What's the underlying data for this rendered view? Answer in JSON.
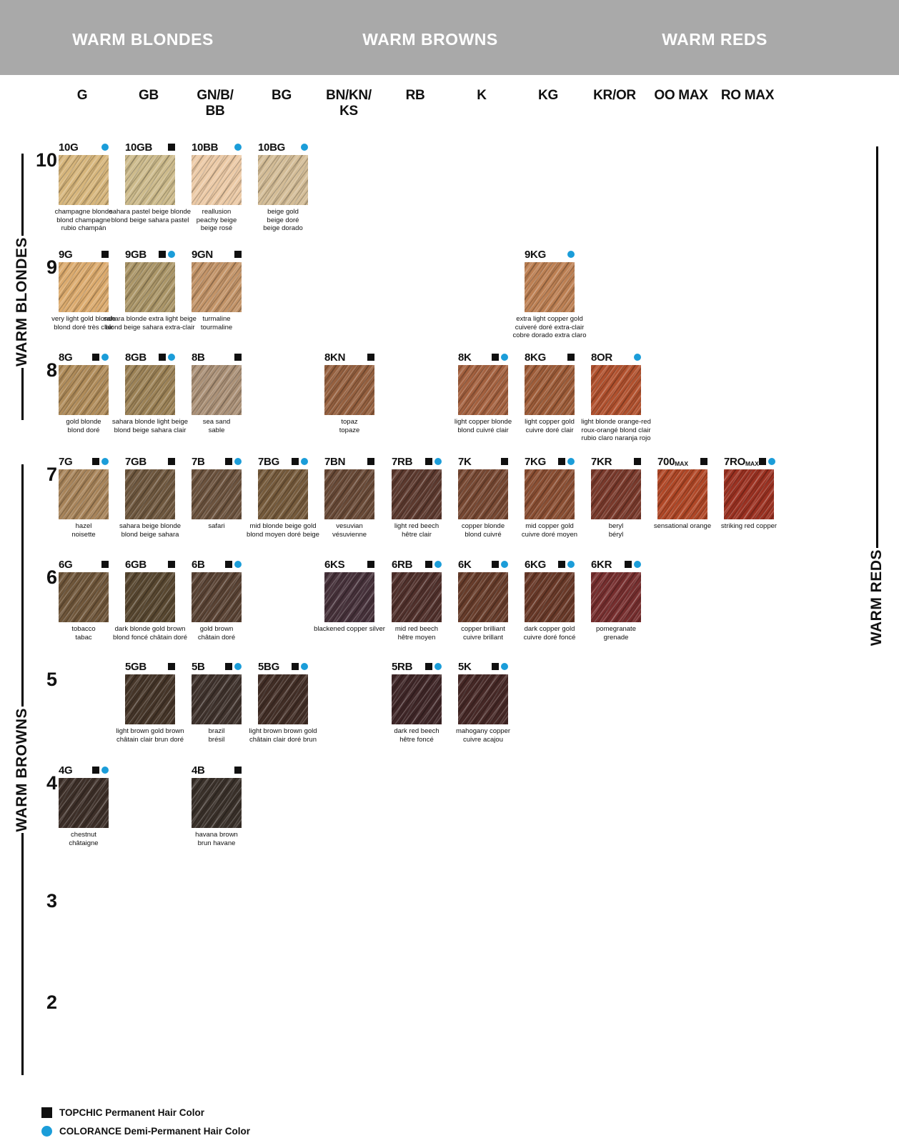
{
  "header": {
    "sections": [
      {
        "label": "WARM BLONDES"
      },
      {
        "label": "WARM BROWNS"
      },
      {
        "label": "WARM REDS"
      }
    ]
  },
  "columns": [
    {
      "line1": "G"
    },
    {
      "line1": "GB"
    },
    {
      "line1": "GN/B/",
      "line2": "BB"
    },
    {
      "line1": "BG"
    },
    {
      "line1": "BN/KN/",
      "line2": "KS"
    },
    {
      "line1": "RB"
    },
    {
      "line1": "K"
    },
    {
      "line1": "KG"
    },
    {
      "line1": "KR/OR"
    },
    {
      "line1": "OO MAX"
    },
    {
      "line1": "RO MAX"
    }
  ],
  "rows": [
    "10",
    "9",
    "8",
    "7",
    "6",
    "5",
    "4",
    "3",
    "2"
  ],
  "side_labels": {
    "warm_blondes": "WARM BLONDES",
    "warm_browns": "WARM BROWNS",
    "warm_reds": "WARM REDS"
  },
  "legend": {
    "items": [
      {
        "marker": "topchic-square",
        "label": "TOPCHIC Permanent Hair Color"
      },
      {
        "marker": "colorance-dot",
        "label": "COLORANCE Demi-Permanent Hair Color"
      }
    ]
  },
  "colors": {
    "colorance_blue": "#1b9dd9",
    "topchic_black": "#101010",
    "header_gray": "#a9a9a9"
  },
  "swatches": [
    {
      "code": "10G",
      "suffix": "",
      "col": 0,
      "row": "10",
      "topchic": false,
      "colorance": true,
      "color": "#d7b67c",
      "names": [
        "champagne blonde",
        "blond champagne",
        "rubio champán"
      ]
    },
    {
      "code": "10GB",
      "suffix": "",
      "col": 1,
      "row": "10",
      "topchic": true,
      "colorance": false,
      "color": "#cdbb8c",
      "names": [
        "sahara pastel beige blonde",
        "blond beige sahara pastel"
      ]
    },
    {
      "code": "10BB",
      "suffix": "",
      "col": 2,
      "row": "10",
      "topchic": false,
      "colorance": true,
      "color": "#eccaa6",
      "names": [
        "reallusion",
        "peachy beige",
        "beige rosé"
      ]
    },
    {
      "code": "10BG",
      "suffix": "",
      "col": 3,
      "row": "10",
      "topchic": false,
      "colorance": true,
      "color": "#d4bd97",
      "names": [
        "beige gold",
        "beige doré",
        "beige dorado"
      ]
    },
    {
      "code": "9G",
      "suffix": "",
      "col": 0,
      "row": "9",
      "topchic": true,
      "colorance": false,
      "color": "#dcab6e",
      "names": [
        "very light gold blonde",
        "blond doré très clair"
      ]
    },
    {
      "code": "9GB",
      "suffix": "",
      "col": 1,
      "row": "9",
      "topchic": true,
      "colorance": true,
      "color": "#ab9668",
      "names": [
        "sahara blonde extra light beige",
        "blond beige sahara extra-clair"
      ]
    },
    {
      "code": "9GN",
      "suffix": "",
      "col": 2,
      "row": "9",
      "topchic": true,
      "colorance": false,
      "color": "#c39468",
      "names": [
        "turmaline",
        "tourmaline"
      ]
    },
    {
      "code": "9KG",
      "suffix": "",
      "col": 7,
      "row": "9",
      "topchic": false,
      "colorance": true,
      "color": "#bd8053",
      "names": [
        "extra light copper gold",
        "cuiveré doré extra-clair",
        "cobre dorado extra claro"
      ]
    },
    {
      "code": "8G",
      "suffix": "",
      "col": 0,
      "row": "8",
      "topchic": true,
      "colorance": true,
      "color": "#b08c5a",
      "names": [
        "gold blonde",
        "blond doré"
      ]
    },
    {
      "code": "8GB",
      "suffix": "",
      "col": 1,
      "row": "8",
      "topchic": true,
      "colorance": true,
      "color": "#9c8256",
      "names": [
        "sahara blonde light beige",
        "blond beige sahara clair"
      ]
    },
    {
      "code": "8B",
      "suffix": "",
      "col": 2,
      "row": "8",
      "topchic": true,
      "colorance": false,
      "color": "#ab9177",
      "names": [
        "sea sand",
        "sable"
      ]
    },
    {
      "code": "8KN",
      "suffix": "",
      "col": 4,
      "row": "8",
      "topchic": true,
      "colorance": false,
      "color": "#95603f",
      "names": [
        "topaz",
        "topaze"
      ]
    },
    {
      "code": "8K",
      "suffix": "",
      "col": 6,
      "row": "8",
      "topchic": true,
      "colorance": true,
      "color": "#a4613f",
      "names": [
        "light copper blonde",
        "blond cuivré clair"
      ]
    },
    {
      "code": "8KG",
      "suffix": "",
      "col": 7,
      "row": "8",
      "topchic": true,
      "colorance": false,
      "color": "#9e5c38",
      "names": [
        "light copper gold",
        "cuivre doré clair"
      ]
    },
    {
      "code": "8OR",
      "suffix": "",
      "col": 8,
      "row": "8",
      "topchic": false,
      "colorance": true,
      "color": "#b1512e",
      "names": [
        "light blonde orange-red",
        "roux-orangé blond clair",
        "rubio claro naranja rojo"
      ]
    },
    {
      "code": "7G",
      "suffix": "",
      "col": 0,
      "row": "7",
      "topchic": true,
      "colorance": true,
      "color": "#a8845a",
      "names": [
        "hazel",
        "noisette"
      ]
    },
    {
      "code": "7GB",
      "suffix": "",
      "col": 1,
      "row": "7",
      "topchic": true,
      "colorance": false,
      "color": "#6e573e",
      "names": [
        "sahara beige blonde",
        "blond beige sahara"
      ]
    },
    {
      "code": "7B",
      "suffix": "",
      "col": 2,
      "row": "7",
      "topchic": true,
      "colorance": true,
      "color": "#6b523d",
      "names": [
        "safari"
      ]
    },
    {
      "code": "7BG",
      "suffix": "",
      "col": 3,
      "row": "7",
      "topchic": true,
      "colorance": true,
      "color": "#755a3b",
      "names": [
        "mid blonde beige gold",
        "blond moyen doré beige"
      ]
    },
    {
      "code": "7BN",
      "suffix": "",
      "col": 4,
      "row": "7",
      "topchic": true,
      "colorance": false,
      "color": "#684936",
      "names": [
        "vesuvian",
        "vésuvienne"
      ]
    },
    {
      "code": "7RB",
      "suffix": "",
      "col": 5,
      "row": "7",
      "topchic": true,
      "colorance": true,
      "color": "#5c392e",
      "names": [
        "light red beech",
        "hêtre clair"
      ]
    },
    {
      "code": "7K",
      "suffix": "",
      "col": 6,
      "row": "7",
      "topchic": true,
      "colorance": false,
      "color": "#774832",
      "names": [
        "copper blonde",
        "blond cuivré"
      ]
    },
    {
      "code": "7KG",
      "suffix": "",
      "col": 7,
      "row": "7",
      "topchic": true,
      "colorance": true,
      "color": "#8a4e32",
      "names": [
        "mid copper gold",
        "cuivre doré moyen"
      ]
    },
    {
      "code": "7KR",
      "suffix": "",
      "col": 8,
      "row": "7",
      "topchic": true,
      "colorance": false,
      "color": "#79392b",
      "names": [
        "beryl",
        "béryl"
      ]
    },
    {
      "code": "700",
      "suffix": "MAX",
      "col": 9,
      "row": "7",
      "topchic": true,
      "colorance": false,
      "color": "#b04726",
      "names": [
        "sensational orange"
      ]
    },
    {
      "code": "7RO",
      "suffix": "MAX",
      "col": 10,
      "row": "7",
      "topchic": true,
      "colorance": true,
      "color": "#9b3121",
      "names": [
        "striking red copper"
      ]
    },
    {
      "code": "6G",
      "suffix": "",
      "col": 0,
      "row": "6",
      "topchic": true,
      "colorance": false,
      "color": "#6f563a",
      "names": [
        "tobacco",
        "tabac"
      ]
    },
    {
      "code": "6GB",
      "suffix": "",
      "col": 1,
      "row": "6",
      "topchic": true,
      "colorance": false,
      "color": "#584730",
      "names": [
        "dark blonde gold brown",
        "blond foncé châtain doré"
      ]
    },
    {
      "code": "6B",
      "suffix": "",
      "col": 2,
      "row": "6",
      "topchic": true,
      "colorance": true,
      "color": "#594233",
      "names": [
        "gold brown",
        "châtain doré"
      ]
    },
    {
      "code": "6KS",
      "suffix": "",
      "col": 4,
      "row": "6",
      "topchic": true,
      "colorance": false,
      "color": "#46313a",
      "names": [
        "blackened copper silver"
      ]
    },
    {
      "code": "6RB",
      "suffix": "",
      "col": 5,
      "row": "6",
      "topchic": true,
      "colorance": true,
      "color": "#50302b",
      "names": [
        "mid red beech",
        "hêtre moyen"
      ]
    },
    {
      "code": "6K",
      "suffix": "",
      "col": 6,
      "row": "6",
      "topchic": true,
      "colorance": true,
      "color": "#673c2a",
      "names": [
        "copper brilliant",
        "cuivre brillant"
      ]
    },
    {
      "code": "6KG",
      "suffix": "",
      "col": 7,
      "row": "6",
      "topchic": true,
      "colorance": true,
      "color": "#693928",
      "names": [
        "dark copper gold",
        "cuivre doré foncé"
      ]
    },
    {
      "code": "6KR",
      "suffix": "",
      "col": 8,
      "row": "6",
      "topchic": true,
      "colorance": true,
      "color": "#762e2e",
      "names": [
        "pomegranate",
        "grenade"
      ]
    },
    {
      "code": "5GB",
      "suffix": "",
      "col": 1,
      "row": "5",
      "topchic": true,
      "colorance": false,
      "color": "#453528",
      "names": [
        "light brown gold brown",
        "châtain clair brun doré"
      ]
    },
    {
      "code": "5B",
      "suffix": "",
      "col": 2,
      "row": "5",
      "topchic": true,
      "colorance": true,
      "color": "#3f322c",
      "names": [
        "brazil",
        "brésil"
      ]
    },
    {
      "code": "5BG",
      "suffix": "",
      "col": 3,
      "row": "5",
      "topchic": true,
      "colorance": true,
      "color": "#422e26",
      "names": [
        "light brown brown gold",
        "châtain clair doré brun"
      ]
    },
    {
      "code": "5RB",
      "suffix": "",
      "col": 5,
      "row": "5",
      "topchic": true,
      "colorance": true,
      "color": "#3f2627",
      "names": [
        "dark red beech",
        "hêtre foncé"
      ]
    },
    {
      "code": "5K",
      "suffix": "",
      "col": 6,
      "row": "5",
      "topchic": true,
      "colorance": true,
      "color": "#462826",
      "names": [
        "mahogany copper",
        "cuivre acajou"
      ]
    },
    {
      "code": "4G",
      "suffix": "",
      "col": 0,
      "row": "4",
      "topchic": true,
      "colorance": true,
      "color": "#3d2f28",
      "names": [
        "chestnut",
        "châtaigne"
      ]
    },
    {
      "code": "4B",
      "suffix": "",
      "col": 2,
      "row": "4",
      "topchic": true,
      "colorance": false,
      "color": "#393029",
      "names": [
        "havana brown",
        "brun havane"
      ]
    }
  ]
}
